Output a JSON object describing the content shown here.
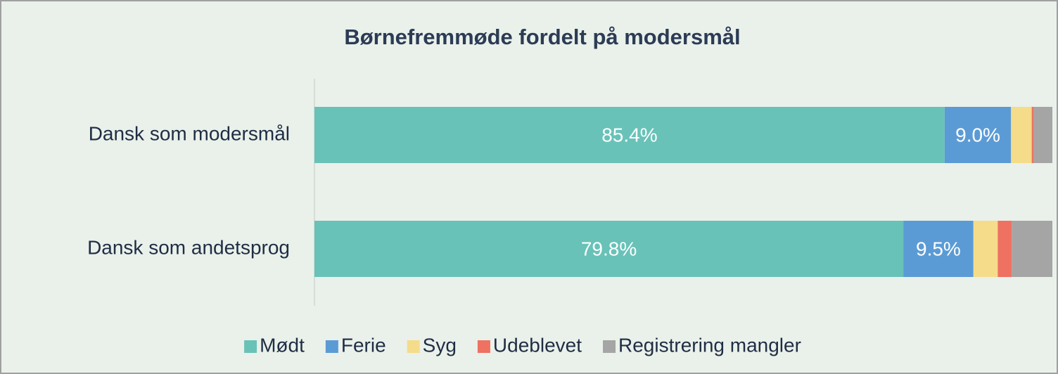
{
  "chart_data": {
    "type": "stacked_barh",
    "title": "Børnefremmøde fordelt på modersmål",
    "categories": [
      "Dansk som modersmål",
      "Dansk som andetsprog"
    ],
    "xlim": [
      0,
      100
    ],
    "legend": "bottom",
    "series": [
      {
        "name": "Mødt",
        "color": "#68c2b8",
        "values": [
          85.4,
          79.8
        ],
        "value_labels": [
          "85.4%",
          "79.8%"
        ]
      },
      {
        "name": "Ferie",
        "color": "#5b9bd5",
        "values": [
          9.0,
          9.5
        ],
        "value_labels": [
          "9.0%",
          "9.5%"
        ]
      },
      {
        "name": "Syg",
        "color": "#f5dc8a",
        "values": [
          2.8,
          3.3
        ]
      },
      {
        "name": "Udeblevet",
        "color": "#ef7161",
        "values": [
          0.3,
          1.9
        ]
      },
      {
        "name": "Registrering mangler",
        "color": "#a5a5a5",
        "values": [
          2.5,
          5.5
        ]
      }
    ]
  }
}
